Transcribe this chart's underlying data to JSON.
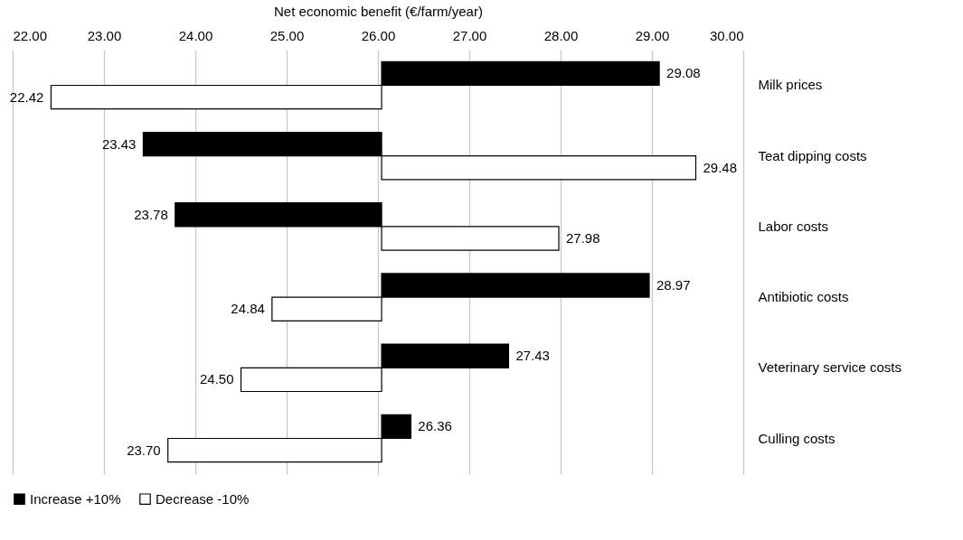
{
  "chart_data": {
    "type": "bar",
    "orientation": "horizontal",
    "xlabel": "Net economic benefit (€/farm/year)",
    "categories": [
      "Milk prices",
      "Teat dipping costs",
      "Labor costs",
      "Antibiotic costs",
      "Veterinary service costs",
      "Culling costs"
    ],
    "series": [
      {
        "name": "Increase +10%",
        "color": "#000000",
        "base": [
          26.04,
          26.04,
          26.04,
          26.04,
          26.04,
          26.04
        ],
        "values": [
          3.04,
          -2.61,
          -2.26,
          2.93,
          1.39,
          0.32
        ],
        "value_labels": [
          "29.08",
          "23.43",
          "23.78",
          "28.97",
          "27.43",
          "26.36"
        ]
      },
      {
        "name": "Decrease -10%",
        "color": "#ffffff",
        "base": [
          26.04,
          26.04,
          26.04,
          26.04,
          26.04,
          26.04
        ],
        "values": [
          -3.62,
          3.44,
          1.94,
          -1.2,
          -1.54,
          -2.34
        ],
        "value_labels": [
          "22.42",
          "29.48",
          "27.98",
          "24.84",
          "24.50",
          "23.70"
        ]
      }
    ],
    "xlim": [
      22,
      30
    ],
    "xticks": [
      {
        "value": 22,
        "label": "22.00"
      },
      {
        "value": 23,
        "label": "23.00"
      },
      {
        "value": 24,
        "label": "24.00"
      },
      {
        "value": 25,
        "label": "25.00"
      },
      {
        "value": 26,
        "label": "26.00"
      },
      {
        "value": 27,
        "label": "27.00"
      },
      {
        "value": 28,
        "label": "28.00"
      },
      {
        "value": 29,
        "label": "29.00"
      },
      {
        "value": 30,
        "label": "30.00"
      }
    ],
    "grid": "x",
    "legend": "bottom"
  }
}
